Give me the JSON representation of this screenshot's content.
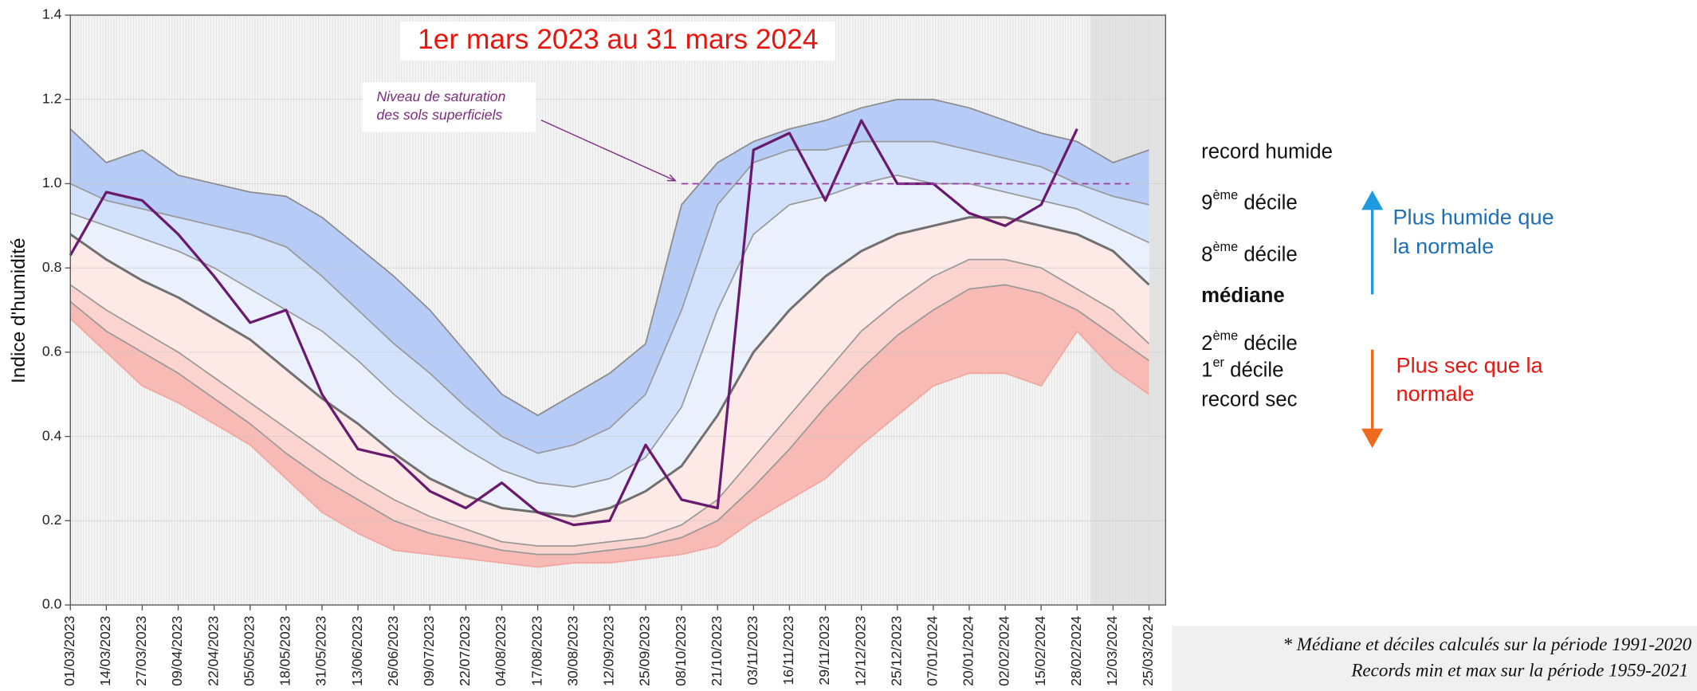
{
  "chart_data": {
    "type": "band",
    "title": "1er mars 2023 au 31 mars 2024",
    "y_label": "Indice d'humidité",
    "annotation": [
      "Niveau de saturation",
      "des sols superficiels"
    ],
    "saturation_level": 1.0,
    "saturation_start": "08/10/2023",
    "categories": [
      "01/03/2023",
      "14/03/2023",
      "27/03/2023",
      "09/04/2023",
      "22/04/2023",
      "05/05/2023",
      "18/05/2023",
      "31/05/2023",
      "13/06/2023",
      "26/06/2023",
      "09/07/2023",
      "22/07/2023",
      "04/08/2023",
      "17/08/2023",
      "30/08/2023",
      "12/09/2023",
      "25/09/2023",
      "08/10/2023",
      "21/10/2023",
      "03/11/2023",
      "16/11/2023",
      "29/11/2023",
      "12/12/2023",
      "25/12/2023",
      "07/01/2024",
      "20/01/2024",
      "02/02/2024",
      "15/02/2024",
      "28/02/2024",
      "12/03/2024",
      "25/03/2024"
    ],
    "ylim": [
      0,
      1.4
    ],
    "yticks": [
      {
        "value": 0,
        "label": "0.0"
      },
      {
        "value": 0.2,
        "label": "0.2"
      },
      {
        "value": 0.4,
        "label": "0.4"
      },
      {
        "value": 0.6,
        "label": "0.6"
      },
      {
        "value": 0.8,
        "label": "0.8"
      },
      {
        "value": 1,
        "label": "1.0"
      },
      {
        "value": 1.2,
        "label": "1.2"
      },
      {
        "value": 1.4,
        "label": "1.4"
      }
    ],
    "grid": true,
    "series": [
      {
        "color": "#8c8c8c",
        "band_color": "#b6cbf6",
        "values": [
          1.13,
          1.05,
          1.08,
          1.02,
          1.0,
          0.98,
          0.97,
          0.92,
          0.85,
          0.78,
          0.7,
          0.6,
          0.5,
          0.45,
          0.5,
          0.55,
          0.62,
          0.95,
          1.05,
          1.1,
          1.13,
          1.15,
          1.18,
          1.2,
          1.2,
          1.18,
          1.15,
          1.12,
          1.1,
          1.05,
          1.08
        ]
      },
      {
        "color": "#9a9a9a",
        "band_color": "#d3e2fc",
        "values": [
          1.0,
          0.96,
          0.94,
          0.92,
          0.9,
          0.88,
          0.85,
          0.78,
          0.7,
          0.62,
          0.55,
          0.47,
          0.4,
          0.36,
          0.38,
          0.42,
          0.5,
          0.7,
          0.95,
          1.05,
          1.08,
          1.08,
          1.1,
          1.1,
          1.1,
          1.08,
          1.06,
          1.04,
          1.0,
          0.97,
          0.95
        ]
      },
      {
        "color": "#9a9a9a",
        "band_color": "#eaf1fd",
        "values": [
          0.93,
          0.9,
          0.87,
          0.84,
          0.8,
          0.75,
          0.7,
          0.65,
          0.58,
          0.5,
          0.43,
          0.37,
          0.32,
          0.29,
          0.28,
          0.3,
          0.35,
          0.47,
          0.7,
          0.88,
          0.95,
          0.97,
          1.0,
          1.02,
          1.0,
          1.0,
          0.98,
          0.96,
          0.94,
          0.9,
          0.86
        ]
      },
      {
        "color": "#707070",
        "band_color": "#fde9e6",
        "values": [
          0.88,
          0.82,
          0.77,
          0.73,
          0.68,
          0.63,
          0.56,
          0.49,
          0.43,
          0.36,
          0.3,
          0.26,
          0.23,
          0.22,
          0.21,
          0.23,
          0.27,
          0.33,
          0.45,
          0.6,
          0.7,
          0.78,
          0.84,
          0.88,
          0.9,
          0.92,
          0.92,
          0.9,
          0.88,
          0.84,
          0.76
        ]
      },
      {
        "color": "#9a9a9a",
        "band_color": "#fbd3cf",
        "values": [
          0.76,
          0.7,
          0.65,
          0.6,
          0.54,
          0.48,
          0.42,
          0.36,
          0.3,
          0.25,
          0.21,
          0.18,
          0.15,
          0.14,
          0.14,
          0.15,
          0.16,
          0.19,
          0.25,
          0.35,
          0.45,
          0.55,
          0.65,
          0.72,
          0.78,
          0.82,
          0.82,
          0.8,
          0.75,
          0.7,
          0.62
        ]
      },
      {
        "color": "#9a9a9a",
        "band_color": "#f8bab5",
        "values": [
          0.72,
          0.65,
          0.6,
          0.55,
          0.49,
          0.43,
          0.36,
          0.3,
          0.25,
          0.2,
          0.17,
          0.15,
          0.13,
          0.12,
          0.12,
          0.13,
          0.14,
          0.16,
          0.2,
          0.28,
          0.37,
          0.47,
          0.56,
          0.64,
          0.7,
          0.75,
          0.76,
          0.74,
          0.7,
          0.64,
          0.58
        ]
      },
      {
        "color": "#f0a7a0",
        "values": [
          0.68,
          0.6,
          0.52,
          0.48,
          0.43,
          0.38,
          0.3,
          0.22,
          0.17,
          0.13,
          0.12,
          0.11,
          0.1,
          0.09,
          0.1,
          0.1,
          0.11,
          0.12,
          0.14,
          0.2,
          0.25,
          0.3,
          0.38,
          0.45,
          0.52,
          0.55,
          0.55,
          0.52,
          0.65,
          0.56,
          0.5
        ]
      },
      {
        "color": "#6a1a6e",
        "values": [
          0.83,
          0.98,
          0.96,
          0.88,
          0.78,
          0.67,
          0.7,
          0.5,
          0.37,
          0.35,
          0.27,
          0.23,
          0.29,
          0.22,
          0.19,
          0.2,
          0.38,
          0.25,
          0.23,
          1.08,
          1.12,
          0.96,
          1.15,
          1.0,
          1.0,
          0.93,
          0.9,
          0.95,
          1.13,
          null,
          null
        ]
      }
    ],
    "legend_labels": [
      {
        "lead": "record humide"
      },
      {
        "lead": "9",
        "sup": "ème",
        "tail": " décile"
      },
      {
        "lead": "8",
        "sup": "ème",
        "tail": " décile"
      },
      {
        "lead": "médiane"
      },
      {
        "lead": "2",
        "sup": "ème",
        "tail": " décile"
      },
      {
        "lead": "1",
        "sup": "er",
        "tail": " décile"
      },
      {
        "lead": "record sec"
      }
    ],
    "wet_note": [
      "Plus humide que",
      "la normale"
    ],
    "dry_note": [
      "Plus sec que la",
      "normale"
    ],
    "footnote": [
      "* Médiane et déciles calculés sur la période 1991-2020",
      "Records min et max sur la période 1959-2021"
    ]
  }
}
